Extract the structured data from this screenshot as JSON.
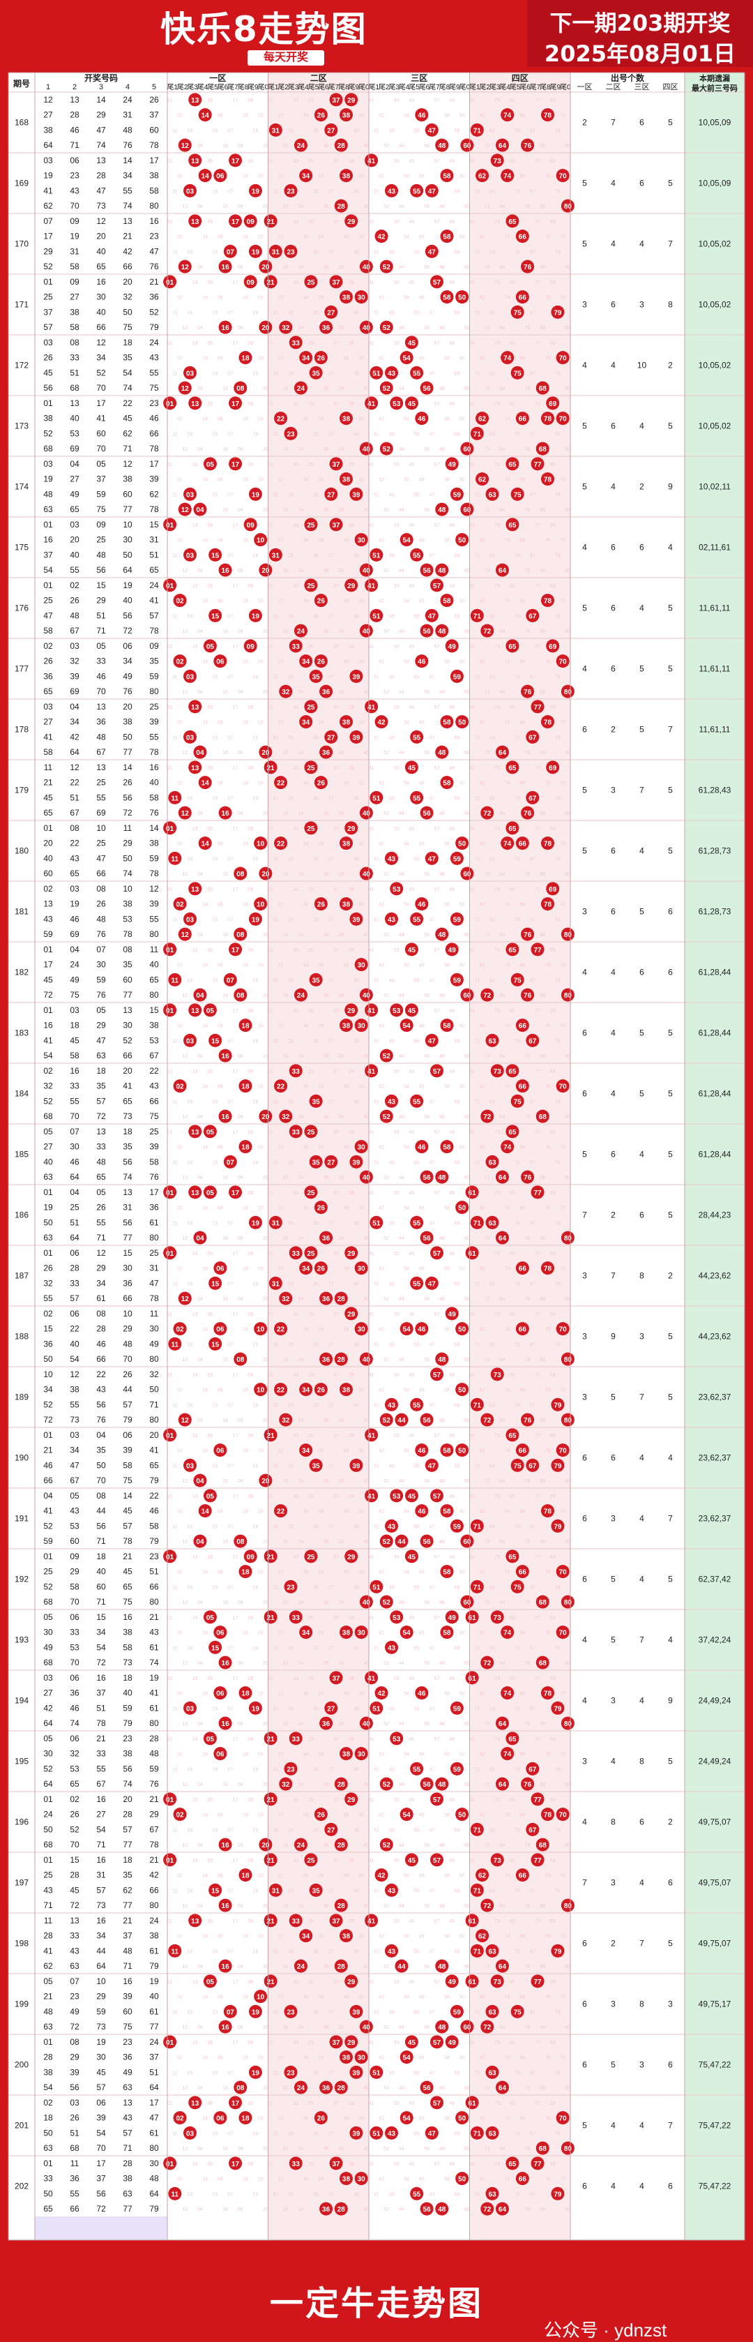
{
  "header": {
    "title": "快乐8走势图",
    "subtitle": "每天开奖",
    "next_draw": "下一期203期开奖",
    "date": "2025年08月01日"
  },
  "footer": {
    "title": "一定牛走势图",
    "watermark": "公众号 · ydnzst"
  },
  "chart_data": {
    "type": "table",
    "columns": {
      "period": "期号",
      "draw": "开奖号码",
      "draw_sub": [
        "1",
        "2",
        "3",
        "4",
        "5"
      ],
      "zone_names": [
        "一区",
        "二区",
        "三区",
        "四区"
      ],
      "tail_labels": [
        "尾1",
        "尾2",
        "尾3",
        "尾4",
        "尾5",
        "尾6",
        "尾7",
        "尾8",
        "尾9",
        "尾0"
      ],
      "count": "出号个数",
      "count_sub": [
        "一区",
        "二区",
        "三区",
        "四区"
      ],
      "miss": "本期遗漏最大前三号码"
    },
    "rows": [
      {
        "period": "168",
        "numbers": [
          12,
          13,
          14,
          24,
          26,
          27,
          28,
          29,
          31,
          37,
          38,
          46,
          47,
          48,
          60,
          64,
          71,
          74,
          76,
          78
        ],
        "counts": [
          2,
          7,
          6,
          5
        ],
        "miss": "10,05,09"
      },
      {
        "period": "169",
        "numbers": [
          3,
          6,
          13,
          14,
          17,
          19,
          23,
          28,
          34,
          38,
          41,
          43,
          47,
          55,
          58,
          62,
          70,
          73,
          74,
          80
        ],
        "counts": [
          5,
          4,
          6,
          5
        ],
        "miss": "10,05,09"
      },
      {
        "period": "170",
        "numbers": [
          7,
          9,
          12,
          13,
          16,
          17,
          19,
          20,
          21,
          23,
          29,
          31,
          40,
          42,
          47,
          52,
          58,
          65,
          66,
          76
        ],
        "counts": [
          5,
          4,
          4,
          7
        ],
        "miss": "10,05,02"
      },
      {
        "period": "171",
        "numbers": [
          1,
          9,
          16,
          20,
          21,
          25,
          27,
          30,
          32,
          36,
          37,
          38,
          40,
          50,
          52,
          57,
          58,
          66,
          75,
          79
        ],
        "counts": [
          3,
          6,
          3,
          8
        ],
        "miss": "10,05,02"
      },
      {
        "period": "172",
        "numbers": [
          3,
          8,
          12,
          18,
          24,
          26,
          33,
          34,
          35,
          43,
          45,
          51,
          52,
          54,
          55,
          56,
          68,
          70,
          74,
          75
        ],
        "counts": [
          4,
          4,
          10,
          2
        ],
        "miss": "10,05,02"
      },
      {
        "period": "173",
        "numbers": [
          1,
          13,
          17,
          22,
          23,
          38,
          40,
          41,
          45,
          46,
          52,
          53,
          60,
          62,
          66,
          68,
          69,
          70,
          71,
          78
        ],
        "counts": [
          5,
          6,
          4,
          5
        ],
        "miss": "10,05,02"
      },
      {
        "period": "174",
        "numbers": [
          3,
          4,
          5,
          12,
          17,
          19,
          27,
          37,
          38,
          39,
          48,
          49,
          59,
          60,
          62,
          63,
          65,
          75,
          77,
          78
        ],
        "counts": [
          5,
          4,
          2,
          9
        ],
        "miss": "10,02,11"
      },
      {
        "period": "175",
        "numbers": [
          1,
          3,
          9,
          10,
          15,
          16,
          20,
          25,
          30,
          31,
          37,
          40,
          48,
          50,
          51,
          54,
          55,
          56,
          64,
          65
        ],
        "counts": [
          4,
          6,
          6,
          4
        ],
        "miss": "02,11,61"
      },
      {
        "period": "176",
        "numbers": [
          1,
          2,
          15,
          19,
          24,
          25,
          26,
          29,
          40,
          41,
          47,
          48,
          51,
          56,
          57,
          58,
          67,
          71,
          72,
          78
        ],
        "counts": [
          5,
          6,
          4,
          5
        ],
        "miss": "11,61,11"
      },
      {
        "period": "177",
        "numbers": [
          2,
          3,
          5,
          6,
          9,
          26,
          32,
          33,
          34,
          35,
          36,
          39,
          46,
          49,
          59,
          65,
          69,
          70,
          76,
          80
        ],
        "counts": [
          4,
          6,
          5,
          5
        ],
        "miss": "11,61,11"
      },
      {
        "period": "178",
        "numbers": [
          3,
          4,
          13,
          20,
          25,
          27,
          34,
          36,
          38,
          39,
          41,
          42,
          48,
          50,
          55,
          58,
          64,
          67,
          77,
          78
        ],
        "counts": [
          6,
          2,
          5,
          7
        ],
        "miss": "11,61,11"
      },
      {
        "period": "179",
        "numbers": [
          11,
          12,
          13,
          14,
          16,
          21,
          22,
          25,
          26,
          40,
          45,
          51,
          55,
          56,
          58,
          65,
          67,
          69,
          72,
          76
        ],
        "counts": [
          5,
          3,
          7,
          5
        ],
        "miss": "61,28,43"
      },
      {
        "period": "180",
        "numbers": [
          1,
          8,
          10,
          11,
          14,
          20,
          22,
          25,
          29,
          38,
          40,
          43,
          47,
          50,
          59,
          60,
          65,
          66,
          74,
          78
        ],
        "counts": [
          5,
          6,
          4,
          5
        ],
        "miss": "61,28,73"
      },
      {
        "period": "181",
        "numbers": [
          2,
          3,
          8,
          10,
          12,
          13,
          19,
          26,
          38,
          39,
          43,
          46,
          48,
          53,
          55,
          59,
          69,
          76,
          78,
          80
        ],
        "counts": [
          3,
          6,
          5,
          6
        ],
        "miss": "61,28,73"
      },
      {
        "period": "182",
        "numbers": [
          1,
          4,
          7,
          8,
          11,
          17,
          24,
          30,
          35,
          40,
          45,
          49,
          59,
          60,
          65,
          72,
          75,
          76,
          77,
          80
        ],
        "counts": [
          4,
          4,
          6,
          6
        ],
        "miss": "61,28,44"
      },
      {
        "period": "183",
        "numbers": [
          1,
          3,
          5,
          13,
          15,
          16,
          18,
          29,
          30,
          38,
          41,
          45,
          47,
          52,
          53,
          54,
          58,
          63,
          66,
          67
        ],
        "counts": [
          6,
          4,
          5,
          5
        ],
        "miss": "61,28,44"
      },
      {
        "period": "184",
        "numbers": [
          2,
          16,
          18,
          20,
          22,
          32,
          33,
          35,
          41,
          43,
          52,
          55,
          57,
          65,
          66,
          68,
          70,
          72,
          73,
          75
        ],
        "counts": [
          6,
          4,
          5,
          5
        ],
        "miss": "61,28,44"
      },
      {
        "period": "185",
        "numbers": [
          5,
          7,
          13,
          18,
          25,
          27,
          30,
          33,
          35,
          40,
          39,
          46,
          48,
          56,
          58,
          63,
          64,
          65,
          74,
          76
        ],
        "counts": [
          5,
          6,
          4,
          5
        ],
        "miss": "61,28,44"
      },
      {
        "period": "186",
        "numbers": [
          1,
          4,
          5,
          13,
          17,
          19,
          25,
          26,
          31,
          36,
          50,
          51,
          55,
          56,
          61,
          63,
          64,
          71,
          77,
          80
        ],
        "counts": [
          7,
          2,
          6,
          5
        ],
        "miss": "28,44,23"
      },
      {
        "period": "187",
        "numbers": [
          1,
          6,
          12,
          15,
          25,
          26,
          28,
          29,
          30,
          31,
          32,
          33,
          34,
          36,
          47,
          55,
          57,
          61,
          66,
          78
        ],
        "counts": [
          3,
          7,
          8,
          2
        ],
        "miss": "44,23,62"
      },
      {
        "period": "188",
        "numbers": [
          2,
          6,
          8,
          10,
          11,
          15,
          22,
          28,
          29,
          30,
          36,
          40,
          46,
          48,
          49,
          50,
          54,
          66,
          70,
          80
        ],
        "counts": [
          3,
          9,
          3,
          5
        ],
        "miss": "44,23,62"
      },
      {
        "period": "189",
        "numbers": [
          10,
          12,
          22,
          26,
          32,
          34,
          38,
          43,
          44,
          50,
          52,
          55,
          56,
          57,
          71,
          72,
          73,
          76,
          79,
          80
        ],
        "counts": [
          3,
          5,
          7,
          5
        ],
        "miss": "23,62,37"
      },
      {
        "period": "190",
        "numbers": [
          1,
          3,
          4,
          6,
          20,
          21,
          34,
          35,
          39,
          41,
          46,
          47,
          50,
          58,
          65,
          66,
          67,
          70,
          75,
          79
        ],
        "counts": [
          6,
          6,
          4,
          4
        ],
        "miss": "23,62,37"
      },
      {
        "period": "191",
        "numbers": [
          4,
          5,
          8,
          14,
          22,
          41,
          43,
          44,
          45,
          46,
          52,
          53,
          56,
          57,
          58,
          59,
          60,
          71,
          78,
          79
        ],
        "counts": [
          6,
          3,
          4,
          7
        ],
        "miss": "23,62,37"
      },
      {
        "period": "192",
        "numbers": [
          1,
          9,
          18,
          21,
          23,
          25,
          29,
          40,
          45,
          51,
          52,
          58,
          60,
          65,
          66,
          68,
          70,
          71,
          75,
          80
        ],
        "counts": [
          6,
          5,
          4,
          5
        ],
        "miss": "62,37,42"
      },
      {
        "period": "193",
        "numbers": [
          5,
          6,
          15,
          16,
          21,
          30,
          33,
          34,
          38,
          43,
          49,
          53,
          54,
          58,
          61,
          68,
          70,
          72,
          73,
          74
        ],
        "counts": [
          4,
          5,
          7,
          4
        ],
        "miss": "37,42,24"
      },
      {
        "period": "194",
        "numbers": [
          3,
          6,
          16,
          18,
          19,
          27,
          36,
          37,
          40,
          41,
          42,
          46,
          51,
          59,
          61,
          64,
          74,
          78,
          79,
          80
        ],
        "counts": [
          4,
          3,
          4,
          9
        ],
        "miss": "24,49,24"
      },
      {
        "period": "195",
        "numbers": [
          5,
          6,
          21,
          23,
          28,
          30,
          32,
          33,
          38,
          48,
          52,
          53,
          55,
          56,
          59,
          64,
          65,
          67,
          74,
          76
        ],
        "counts": [
          3,
          4,
          8,
          5
        ],
        "miss": "24,49,24"
      },
      {
        "period": "196",
        "numbers": [
          1,
          2,
          16,
          20,
          21,
          24,
          26,
          27,
          28,
          29,
          50,
          52,
          54,
          57,
          67,
          68,
          70,
          71,
          77,
          78
        ],
        "counts": [
          4,
          8,
          6,
          2
        ],
        "miss": "49,75,07"
      },
      {
        "period": "197",
        "numbers": [
          1,
          15,
          16,
          18,
          21,
          25,
          28,
          31,
          35,
          42,
          43,
          45,
          57,
          62,
          66,
          71,
          72,
          73,
          77,
          80
        ],
        "counts": [
          7,
          3,
          4,
          6
        ],
        "miss": "49,75,07"
      },
      {
        "period": "198",
        "numbers": [
          11,
          13,
          16,
          21,
          24,
          28,
          33,
          34,
          37,
          38,
          41,
          43,
          44,
          48,
          61,
          62,
          63,
          64,
          71,
          79
        ],
        "counts": [
          6,
          2,
          7,
          5
        ],
        "miss": "49,75,07"
      },
      {
        "period": "199",
        "numbers": [
          5,
          7,
          10,
          16,
          19,
          21,
          23,
          29,
          39,
          40,
          48,
          49,
          59,
          60,
          61,
          63,
          72,
          73,
          75,
          77
        ],
        "counts": [
          6,
          3,
          8,
          3
        ],
        "miss": "49,75,17"
      },
      {
        "period": "200",
        "numbers": [
          1,
          8,
          19,
          23,
          24,
          28,
          29,
          30,
          36,
          37,
          38,
          39,
          45,
          49,
          51,
          54,
          56,
          57,
          63,
          64
        ],
        "counts": [
          6,
          5,
          3,
          6
        ],
        "miss": "75,47,22"
      },
      {
        "period": "201",
        "numbers": [
          2,
          3,
          6,
          13,
          17,
          18,
          26,
          39,
          43,
          47,
          50,
          51,
          54,
          57,
          61,
          63,
          68,
          70,
          71,
          80
        ],
        "counts": [
          5,
          4,
          4,
          7
        ],
        "miss": "75,47,22"
      },
      {
        "period": "202",
        "numbers": [
          1,
          11,
          17,
          28,
          33,
          38,
          30,
          36,
          37,
          48,
          50,
          55,
          56,
          63,
          64,
          65,
          66,
          72,
          77,
          79
        ],
        "counts": [
          6,
          4,
          4,
          6
        ],
        "miss": "75,47,22"
      }
    ],
    "colors": {
      "ball": "#d21a22",
      "zone_odd": "#ffffff",
      "zone_even": "#fbeaec",
      "draw_bg": "#ffffff",
      "draw_band": "#e7e2f7",
      "count_bg": "#ffffff",
      "miss_bg": "#d8f1de",
      "ghost": "#f0c8cc",
      "grid": "#e4c6c9",
      "header_bg": "#ffffff"
    }
  }
}
